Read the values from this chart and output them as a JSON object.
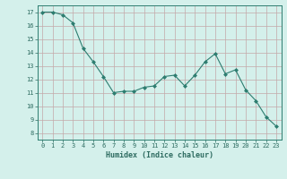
{
  "x": [
    0,
    1,
    2,
    3,
    4,
    5,
    6,
    7,
    8,
    9,
    10,
    11,
    12,
    13,
    14,
    15,
    16,
    17,
    18,
    19,
    20,
    21,
    22,
    23
  ],
  "y": [
    17.0,
    17.0,
    16.8,
    16.2,
    14.3,
    13.3,
    12.2,
    11.0,
    11.1,
    11.1,
    11.4,
    11.5,
    12.2,
    12.3,
    11.5,
    12.3,
    13.3,
    13.9,
    12.4,
    12.7,
    11.2,
    10.4,
    9.2,
    8.5
  ],
  "xlabel": "Humidex (Indice chaleur)",
  "ylim": [
    7.5,
    17.5
  ],
  "xlim": [
    -0.5,
    23.5
  ],
  "yticks": [
    8,
    9,
    10,
    11,
    12,
    13,
    14,
    15,
    16,
    17
  ],
  "xticks": [
    0,
    1,
    2,
    3,
    4,
    5,
    6,
    7,
    8,
    9,
    10,
    11,
    12,
    13,
    14,
    15,
    16,
    17,
    18,
    19,
    20,
    21,
    22,
    23
  ],
  "line_color": "#2d7d70",
  "marker_color": "#2d7d70",
  "bg_color": "#d4f0eb",
  "grid_color": "#c4a8a8",
  "axis_color": "#2d7d70",
  "tick_label_color": "#2d6b60",
  "xlabel_color": "#2d6b60",
  "tick_fontsize": 5.0,
  "xlabel_fontsize": 6.0
}
